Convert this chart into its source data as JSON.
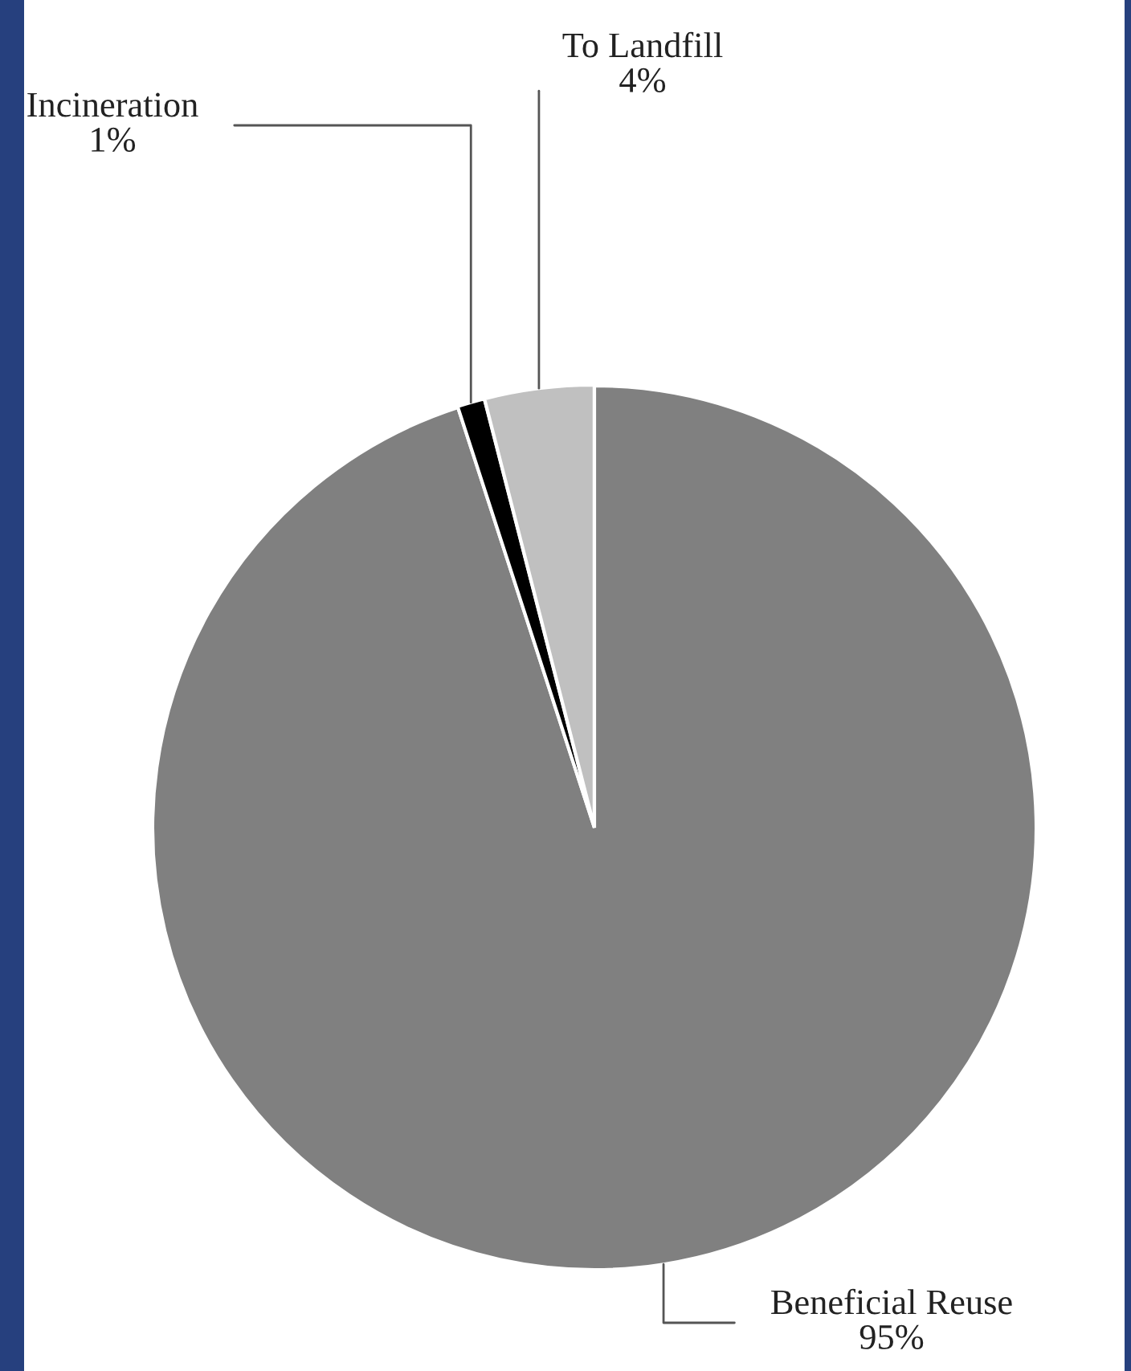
{
  "chart_data": {
    "type": "pie",
    "categories": [
      "Beneficial Reuse",
      "Incineration",
      "To Landfill"
    ],
    "values": [
      95,
      1,
      4
    ],
    "colors": [
      "#808080",
      "#000000",
      "#c0c0c0"
    ],
    "value_labels": [
      "95%",
      "1%",
      "4%"
    ]
  }
}
